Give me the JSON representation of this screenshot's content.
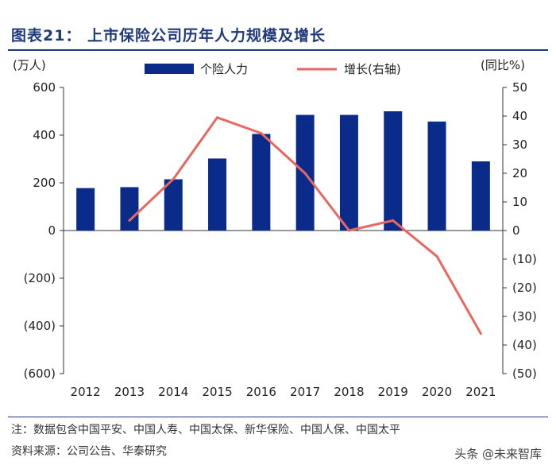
{
  "header": {
    "title": "图表21：  上市保险公司历年人力规模及增长"
  },
  "chart_data": {
    "type": "bar+line",
    "categories": [
      "2012",
      "2013",
      "2014",
      "2015",
      "2016",
      "2017",
      "2018",
      "2019",
      "2020",
      "2021"
    ],
    "series": [
      {
        "name": "个险人力",
        "type": "bar",
        "axis": "left",
        "color": "#0b2b8a",
        "values": [
          178,
          182,
          215,
          302,
          405,
          485,
          485,
          500,
          457,
          290
        ]
      },
      {
        "name": "增长(右轴)",
        "type": "line",
        "axis": "right",
        "color": "#e8675f",
        "values": [
          null,
          3.5,
          18,
          39.5,
          34,
          20,
          0,
          3.5,
          -9,
          -36
        ]
      }
    ],
    "left_axis": {
      "unit": "(万人)",
      "ylim": [
        -600,
        600
      ],
      "ticks": [
        "600",
        "400",
        "200",
        "0",
        "(200)",
        "(400)",
        "(600)"
      ]
    },
    "right_axis": {
      "unit": "(同比%)",
      "ylim": [
        -50,
        50
      ],
      "ticks": [
        "50",
        "40",
        "30",
        "20",
        "10",
        "0",
        "(10)",
        "(20)",
        "(30)",
        "(40)",
        "(50)"
      ]
    },
    "legend": [
      "个险人力",
      "增长(右轴)"
    ],
    "legend_position": "top"
  },
  "footer": {
    "note": "注：数据包含中国平安、中国人寿、中国太保、新华保险、中国人保、中国太平",
    "source": "资料来源：公司公告、华泰研究",
    "watermark": "头条 @未来智库"
  }
}
